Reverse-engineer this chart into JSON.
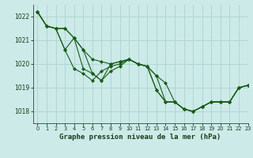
{
  "title": "Graphe pression niveau de la mer (hPa)",
  "x_ticks": [
    0,
    1,
    2,
    3,
    4,
    5,
    6,
    7,
    8,
    9,
    10,
    11,
    12,
    13,
    14,
    15,
    16,
    17,
    18,
    19,
    20,
    21,
    22,
    23
  ],
  "ylim": [
    1017.5,
    1022.5
  ],
  "xlim": [
    -0.5,
    23
  ],
  "yticks": [
    1018,
    1019,
    1020,
    1021,
    1022
  ],
  "background_color": "#cceae8",
  "grid_color": "#aad4d0",
  "line_color": "#1a5c1a",
  "marker_color": "#1a5c1a",
  "series": [
    [
      1022.2,
      1021.6,
      1021.5,
      1020.6,
      1019.8,
      1019.6,
      1019.3,
      1019.7,
      1019.9,
      1020.0,
      1020.2,
      1020.0,
      1019.9,
      1018.9,
      1018.4,
      1018.4,
      1018.1,
      1018.0,
      1018.2,
      1018.4,
      1018.4,
      1018.4,
      1019.0,
      1019.1
    ],
    [
      1022.2,
      1021.6,
      1021.5,
      1020.6,
      1021.1,
      1019.8,
      1019.6,
      1019.3,
      1019.7,
      1019.9,
      1020.2,
      1020.0,
      1019.9,
      1018.9,
      1018.4,
      1018.4,
      1018.1,
      1018.0,
      1018.2,
      1018.4,
      1018.4,
      1018.4,
      1019.0,
      1019.1
    ],
    [
      1022.2,
      1021.6,
      1021.5,
      1021.5,
      1021.1,
      1020.6,
      1019.6,
      1019.3,
      1020.0,
      1020.1,
      1020.2,
      1020.0,
      1019.9,
      1019.5,
      1018.4,
      1018.4,
      1018.1,
      1018.0,
      1018.2,
      1018.4,
      1018.4,
      1018.4,
      1019.0,
      1019.1
    ],
    [
      1022.2,
      1021.6,
      1021.5,
      1021.5,
      1021.1,
      1020.6,
      1020.2,
      1020.1,
      1020.0,
      1020.1,
      1020.2,
      1020.0,
      1019.9,
      1019.5,
      1019.2,
      1018.4,
      1018.1,
      1018.0,
      1018.2,
      1018.4,
      1018.4,
      1018.4,
      1019.0,
      1019.1
    ]
  ],
  "title_fontsize": 6.5,
  "tick_fontsize": 4.8,
  "ytick_fontsize": 5.5
}
